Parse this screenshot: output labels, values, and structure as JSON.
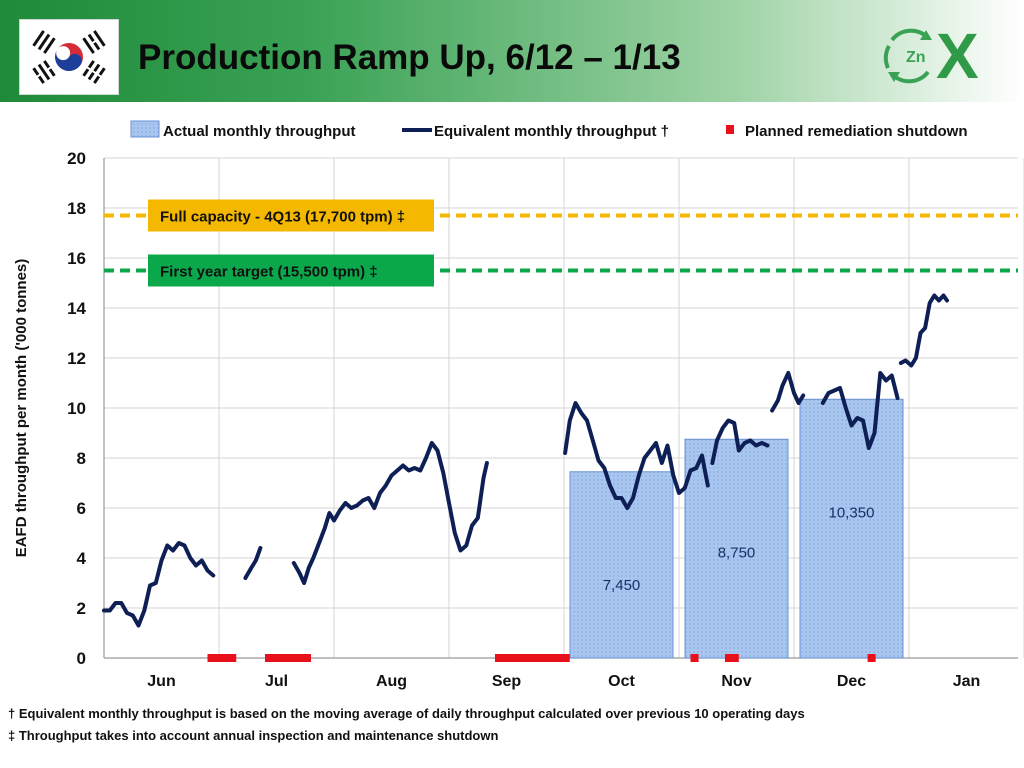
{
  "header": {
    "title": "Production Ramp Up, 6/12 – 1/13",
    "flag_icon": "south-korea-flag-icon",
    "logo_icon": "zinc-recycle-zox-logo-icon",
    "logo_text": "X",
    "logo_zn": "Zn"
  },
  "footnotes": [
    "† Equivalent monthly throughput is based on the moving average of daily throughput calculated over previous 10 operating days",
    "‡ Throughput takes into account annual inspection and maintenance shutdown"
  ],
  "colors": {
    "header_green": "#2f9a47",
    "bar_fill": "#a9c6ef",
    "bar_edge": "#6a92d4",
    "line": "#0e1f55",
    "shutdown": "#e8101a",
    "full_capacity": "#f5b800",
    "first_year_target": "#0aa84a"
  },
  "chart_data": {
    "type": "bar",
    "ylabel": "EAFD throughput per month ('000 tonnes)",
    "ylim": [
      0,
      20
    ],
    "yticks": [
      "0",
      "2",
      "4",
      "6",
      "8",
      "10",
      "12",
      "14",
      "16",
      "18",
      "20"
    ],
    "categories": [
      "Jun",
      "Jul",
      "Aug",
      "Sep",
      "Oct",
      "Nov",
      "Dec",
      "Jan"
    ],
    "grid": true,
    "legend_position": "top",
    "legend": {
      "bar": "Actual monthly throughput",
      "line": "Equivalent monthly throughput †",
      "marker": "Planned remediation shutdown"
    },
    "bars": {
      "name": "Actual monthly throughput",
      "categories": [
        "Oct",
        "Nov",
        "Dec"
      ],
      "values": [
        7.45,
        8.75,
        10.35
      ],
      "labels": [
        "7,450",
        "8,750",
        "10,350"
      ]
    },
    "reference_lines": [
      {
        "label": "Full capacity - 4Q13 (17,700 tpm) ‡",
        "value": 17.7,
        "color": "#f5b800"
      },
      {
        "label": "First year target (15,500 tpm) ‡",
        "value": 15.5,
        "color": "#0aa84a"
      }
    ],
    "line_series": {
      "name": "Equivalent monthly throughput †",
      "x_unit": "months since start of Jun",
      "segments": [
        [
          [
            0.0,
            1.9
          ],
          [
            0.05,
            1.9
          ],
          [
            0.1,
            2.2
          ],
          [
            0.15,
            2.2
          ],
          [
            0.2,
            1.8
          ],
          [
            0.25,
            1.7
          ],
          [
            0.3,
            1.3
          ],
          [
            0.35,
            1.9
          ],
          [
            0.4,
            2.9
          ],
          [
            0.45,
            3.0
          ],
          [
            0.5,
            3.9
          ],
          [
            0.55,
            4.5
          ],
          [
            0.6,
            4.3
          ],
          [
            0.65,
            4.6
          ],
          [
            0.7,
            4.5
          ],
          [
            0.75,
            4.0
          ],
          [
            0.8,
            3.7
          ],
          [
            0.85,
            3.9
          ],
          [
            0.9,
            3.5
          ],
          [
            0.95,
            3.3
          ]
        ],
        [
          [
            1.23,
            3.2
          ],
          [
            1.28,
            3.6
          ],
          [
            1.32,
            3.9
          ],
          [
            1.36,
            4.4
          ]
        ],
        [
          [
            1.65,
            3.8
          ],
          [
            1.7,
            3.4
          ],
          [
            1.74,
            3.0
          ],
          [
            1.78,
            3.6
          ],
          [
            1.82,
            4.0
          ],
          [
            1.87,
            4.6
          ],
          [
            1.92,
            5.2
          ],
          [
            1.96,
            5.8
          ],
          [
            2.0,
            5.5
          ],
          [
            2.05,
            5.9
          ],
          [
            2.1,
            6.2
          ],
          [
            2.15,
            6.0
          ],
          [
            2.2,
            6.1
          ],
          [
            2.25,
            6.3
          ],
          [
            2.3,
            6.4
          ],
          [
            2.35,
            6.0
          ],
          [
            2.4,
            6.6
          ],
          [
            2.45,
            6.9
          ],
          [
            2.5,
            7.3
          ],
          [
            2.55,
            7.5
          ],
          [
            2.6,
            7.7
          ],
          [
            2.65,
            7.5
          ],
          [
            2.7,
            7.6
          ],
          [
            2.75,
            7.5
          ],
          [
            2.8,
            8.0
          ],
          [
            2.85,
            8.6
          ],
          [
            2.9,
            8.3
          ],
          [
            2.95,
            7.4
          ],
          [
            3.0,
            6.2
          ],
          [
            3.05,
            5.0
          ],
          [
            3.1,
            4.3
          ],
          [
            3.15,
            4.5
          ],
          [
            3.2,
            5.3
          ],
          [
            3.25,
            5.6
          ],
          [
            3.3,
            7.2
          ],
          [
            3.33,
            7.8
          ]
        ],
        [
          [
            4.01,
            8.2
          ],
          [
            4.05,
            9.5
          ],
          [
            4.1,
            10.2
          ],
          [
            4.15,
            9.8
          ],
          [
            4.2,
            9.5
          ],
          [
            4.25,
            8.7
          ],
          [
            4.3,
            7.9
          ],
          [
            4.35,
            7.6
          ],
          [
            4.4,
            6.9
          ],
          [
            4.45,
            6.4
          ],
          [
            4.5,
            6.4
          ],
          [
            4.55,
            6.0
          ],
          [
            4.6,
            6.4
          ],
          [
            4.65,
            7.3
          ],
          [
            4.7,
            8.0
          ],
          [
            4.75,
            8.3
          ],
          [
            4.8,
            8.6
          ],
          [
            4.85,
            7.8
          ],
          [
            4.9,
            8.5
          ],
          [
            4.95,
            7.3
          ],
          [
            5.0,
            6.6
          ],
          [
            5.05,
            6.8
          ],
          [
            5.1,
            7.5
          ],
          [
            5.15,
            7.6
          ],
          [
            5.2,
            8.1
          ],
          [
            5.25,
            6.9
          ]
        ],
        [
          [
            5.29,
            7.8
          ],
          [
            5.33,
            8.7
          ],
          [
            5.38,
            9.2
          ],
          [
            5.43,
            9.5
          ],
          [
            5.48,
            9.4
          ],
          [
            5.52,
            8.3
          ],
          [
            5.57,
            8.6
          ],
          [
            5.62,
            8.7
          ],
          [
            5.67,
            8.5
          ],
          [
            5.72,
            8.6
          ],
          [
            5.77,
            8.5
          ]
        ],
        [
          [
            5.81,
            9.9
          ],
          [
            5.86,
            10.3
          ],
          [
            5.9,
            10.9
          ],
          [
            5.95,
            11.4
          ],
          [
            6.0,
            10.6
          ],
          [
            6.04,
            10.2
          ],
          [
            6.08,
            10.5
          ]
        ],
        [
          [
            6.25,
            10.2
          ],
          [
            6.3,
            10.6
          ],
          [
            6.35,
            10.7
          ],
          [
            6.4,
            10.8
          ],
          [
            6.45,
            10.0
          ],
          [
            6.5,
            9.3
          ],
          [
            6.55,
            9.6
          ],
          [
            6.6,
            9.5
          ],
          [
            6.65,
            8.4
          ],
          [
            6.7,
            9.0
          ],
          [
            6.75,
            11.4
          ],
          [
            6.8,
            11.1
          ],
          [
            6.85,
            11.3
          ],
          [
            6.9,
            10.4
          ]
        ],
        [
          [
            6.93,
            11.8
          ],
          [
            6.97,
            11.9
          ],
          [
            7.02,
            11.7
          ],
          [
            7.06,
            12.0
          ],
          [
            7.1,
            13.0
          ],
          [
            7.14,
            13.2
          ],
          [
            7.18,
            14.2
          ],
          [
            7.22,
            14.5
          ],
          [
            7.26,
            14.3
          ],
          [
            7.3,
            14.5
          ],
          [
            7.33,
            14.3
          ]
        ]
      ]
    },
    "shutdowns": [
      {
        "start": 0.9,
        "end": 1.15
      },
      {
        "start": 1.4,
        "end": 1.8
      },
      {
        "start": 3.4,
        "end": 4.05
      },
      {
        "start": 5.1,
        "end": 5.17
      },
      {
        "start": 5.4,
        "end": 5.52
      },
      {
        "start": 6.64,
        "end": 6.71
      }
    ]
  }
}
